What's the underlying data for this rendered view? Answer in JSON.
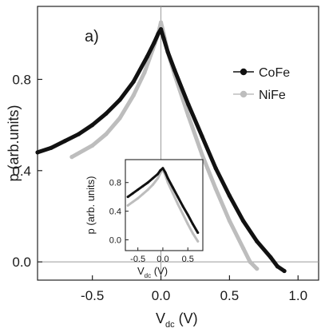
{
  "chart_data": {
    "type": "scatter",
    "panel_label": "a)",
    "xlabel": {
      "main": "V",
      "sub": "dc",
      "unit": " (V)"
    },
    "ylabel": "p (arb.units)",
    "xlim": [
      -0.9,
      1.15
    ],
    "ylim": [
      -0.08,
      1.12
    ],
    "x_ticks": [
      -0.5,
      0.0,
      0.5,
      1.0
    ],
    "x_tick_labels": [
      "-0.5",
      "0.0",
      "0.5",
      "1.0"
    ],
    "y_ticks": [
      0.0,
      0.4,
      0.8
    ],
    "y_tick_labels": [
      "0.0",
      "0.4",
      "0.8"
    ],
    "reference_lines": {
      "x": 0.0,
      "y": 0.0
    },
    "legend_position": "right",
    "colors": {
      "CoFe": "#111111",
      "NiFe": "#bdbdbd"
    },
    "series": [
      {
        "name": "CoFe",
        "x": [
          -0.9,
          -0.8,
          -0.7,
          -0.6,
          -0.5,
          -0.4,
          -0.3,
          -0.2,
          -0.1,
          -0.05,
          -0.02,
          0.0,
          0.02,
          0.05,
          0.1,
          0.2,
          0.3,
          0.4,
          0.5,
          0.6,
          0.7,
          0.8,
          0.85,
          0.9
        ],
        "y": [
          0.48,
          0.5,
          0.53,
          0.56,
          0.6,
          0.65,
          0.71,
          0.79,
          0.9,
          0.96,
          1.0,
          1.02,
          0.98,
          0.92,
          0.84,
          0.69,
          0.55,
          0.41,
          0.29,
          0.18,
          0.09,
          0.02,
          -0.02,
          -0.04
        ]
      },
      {
        "name": "NiFe",
        "x": [
          -0.65,
          -0.5,
          -0.4,
          -0.3,
          -0.2,
          -0.12,
          -0.06,
          -0.02,
          0.0,
          0.02,
          0.05,
          0.1,
          0.2,
          0.3,
          0.4,
          0.5,
          0.6,
          0.65,
          0.7
        ],
        "y": [
          0.46,
          0.51,
          0.56,
          0.63,
          0.73,
          0.83,
          0.93,
          1.0,
          1.05,
          1.0,
          0.92,
          0.82,
          0.64,
          0.47,
          0.32,
          0.18,
          0.06,
          0.0,
          -0.03
        ]
      }
    ],
    "inset": {
      "xlabel": {
        "main": "V",
        "sub": "dc",
        "unit": " (V)"
      },
      "ylabel": "p (arb. units)",
      "xlim": [
        -0.75,
        0.8
      ],
      "ylim": [
        -0.15,
        1.12
      ],
      "x_ticks": [
        -0.5,
        0.0,
        0.5
      ],
      "x_tick_labels": [
        "-0.5",
        "0.0",
        "0.5"
      ],
      "y_ticks": [
        0.0,
        0.4,
        0.8
      ],
      "y_tick_labels": [
        "0.0",
        "0.4",
        "0.8"
      ],
      "series": [
        {
          "name": "CoFe",
          "x": [
            -0.7,
            -0.6,
            -0.5,
            -0.4,
            -0.3,
            -0.2,
            -0.1,
            -0.05,
            0.0,
            0.05,
            0.1,
            0.2,
            0.3,
            0.4,
            0.5,
            0.6,
            0.7
          ],
          "y": [
            0.6,
            0.65,
            0.7,
            0.75,
            0.8,
            0.86,
            0.92,
            0.97,
            1.0,
            0.94,
            0.86,
            0.73,
            0.6,
            0.47,
            0.35,
            0.22,
            0.1
          ]
        },
        {
          "name": "NiFe",
          "x": [
            -0.7,
            -0.6,
            -0.5,
            -0.4,
            -0.3,
            -0.2,
            -0.1,
            -0.05,
            0.0,
            0.05,
            0.1,
            0.2,
            0.3,
            0.4,
            0.5,
            0.6,
            0.7
          ],
          "y": [
            0.48,
            0.53,
            0.58,
            0.64,
            0.7,
            0.77,
            0.86,
            0.93,
            0.98,
            0.9,
            0.8,
            0.65,
            0.5,
            0.36,
            0.22,
            0.09,
            -0.02
          ]
        }
      ]
    }
  }
}
